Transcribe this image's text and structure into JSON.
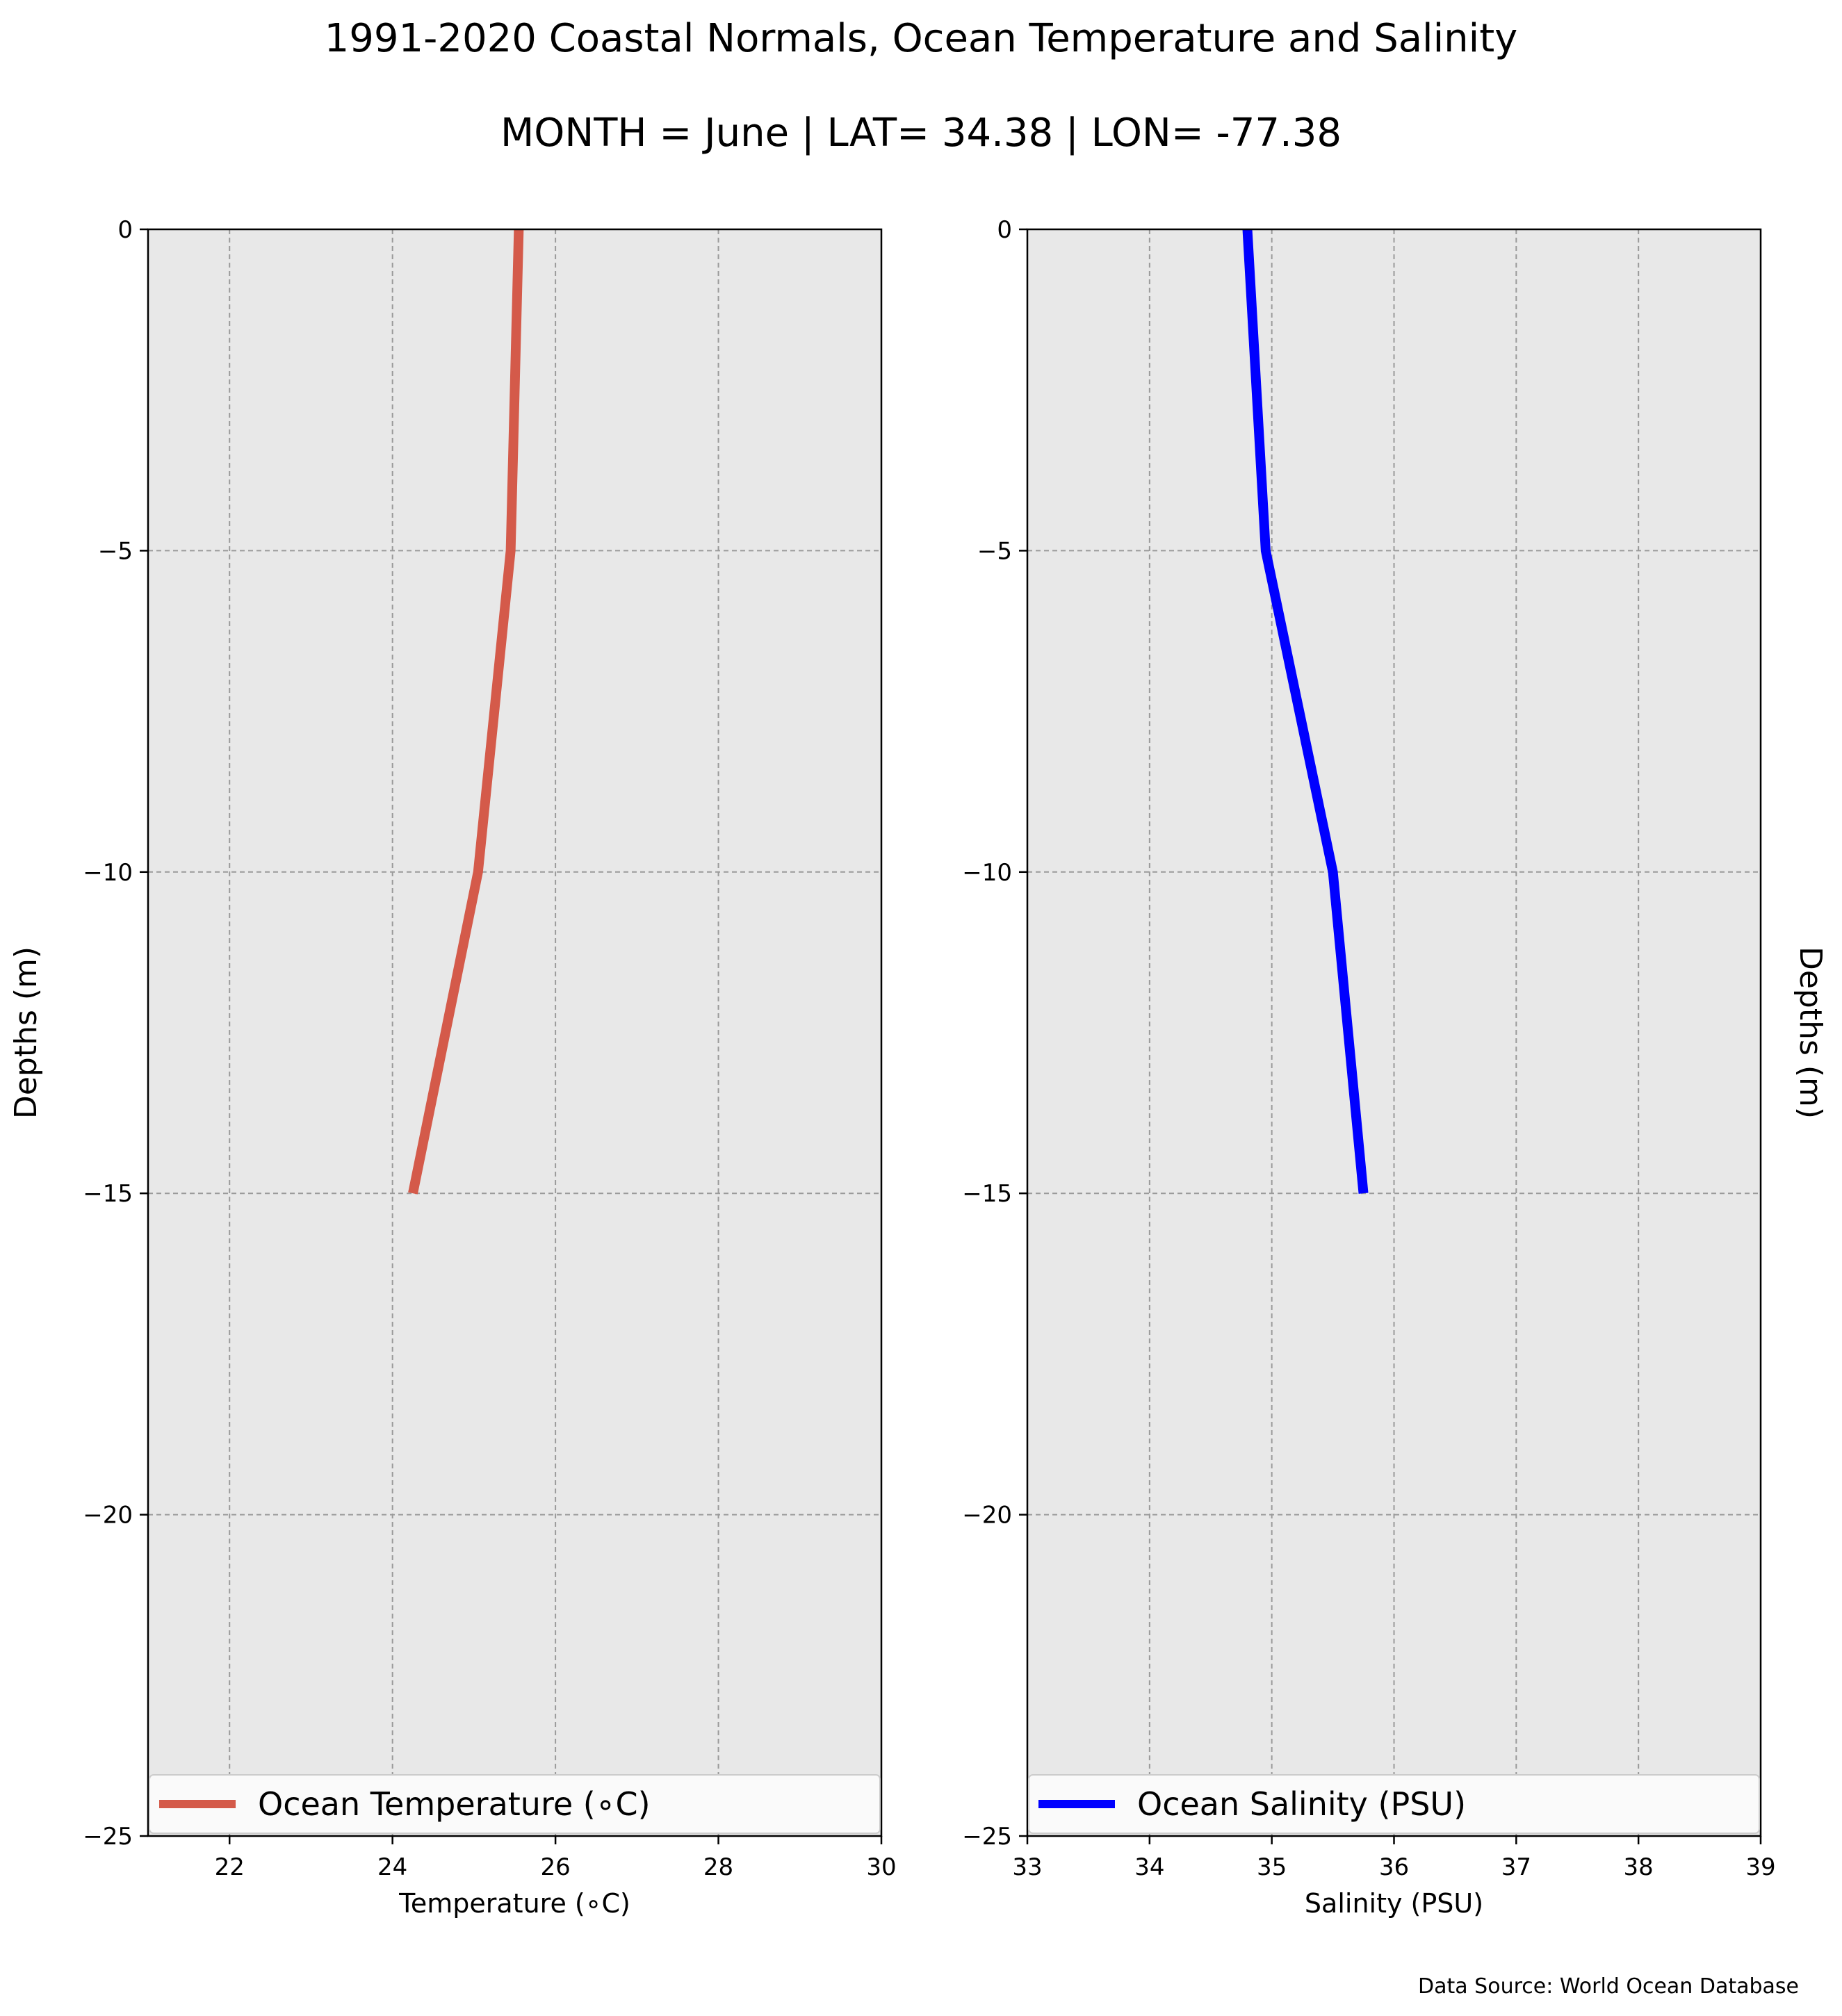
{
  "figure": {
    "title": "1991-2020 Coastal Normals, Ocean Temperature and Salinity",
    "subtitle": "MONTH = June | LAT= 34.38 | LON= -77.38",
    "source_note": "Data Source: World Ocean Database",
    "background_color": "#e8e8e8",
    "grid": true
  },
  "chart_data": [
    {
      "type": "line",
      "xlabel": "Temperature ($^\\circ$C)",
      "xlabel_text": "Temperature (∘C)",
      "ylabel": "Depths (m)",
      "xlim": [
        21,
        30
      ],
      "ylim": [
        -25,
        0
      ],
      "xticks": [
        22,
        24,
        26,
        28,
        30
      ],
      "yticks": [
        0,
        -5,
        -10,
        -15,
        -20,
        -25
      ],
      "ytick_labels": [
        "0",
        "−5",
        "−10",
        "−15",
        "−20",
        "−25"
      ],
      "legend_position": "bottom",
      "series": [
        {
          "name": "Ocean Temperature (∘C)",
          "color": "#d45a4a",
          "x": [
            25.55,
            25.45,
            25.05,
            24.25
          ],
          "y": [
            0,
            -5,
            -10,
            -15
          ]
        }
      ]
    },
    {
      "type": "line",
      "xlabel_text": "Salinity (PSU)",
      "ylabel": "Depths (m)",
      "xlim": [
        33,
        39
      ],
      "ylim": [
        -25,
        0
      ],
      "xticks": [
        33,
        34,
        35,
        36,
        37,
        38,
        39
      ],
      "yticks": [
        0,
        -5,
        -10,
        -15,
        -20,
        -25
      ],
      "ytick_labels": [
        "0",
        "−5",
        "−10",
        "−15",
        "−20",
        "−25"
      ],
      "legend_position": "bottom",
      "series": [
        {
          "name": "Ocean Salinity (PSU)",
          "color": "#0000ff",
          "x": [
            34.8,
            34.95,
            35.5,
            35.75
          ],
          "y": [
            0,
            -5,
            -10,
            -15
          ]
        }
      ]
    }
  ]
}
